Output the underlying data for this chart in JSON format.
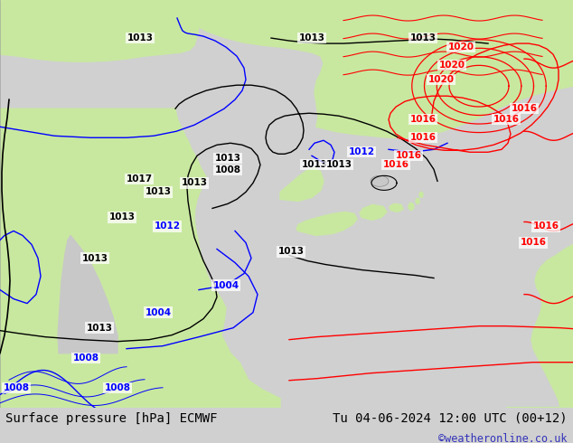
{
  "title_left": "Surface pressure [hPa] ECMWF",
  "title_right": "Tu 04-06-2024 12:00 UTC (00+12)",
  "copyright": "©weatheronline.co.uk",
  "bg_color": "#d0d0d0",
  "map_bg_color": "#c8c8c8",
  "land_color": "#c8e8a0",
  "bottom_bar_color": "#d8d8d8",
  "title_fontsize": 10,
  "copyright_color": "#3333bb",
  "title_color": "#000000",
  "fig_width": 6.34,
  "fig_height": 4.9,
  "dpi": 100
}
